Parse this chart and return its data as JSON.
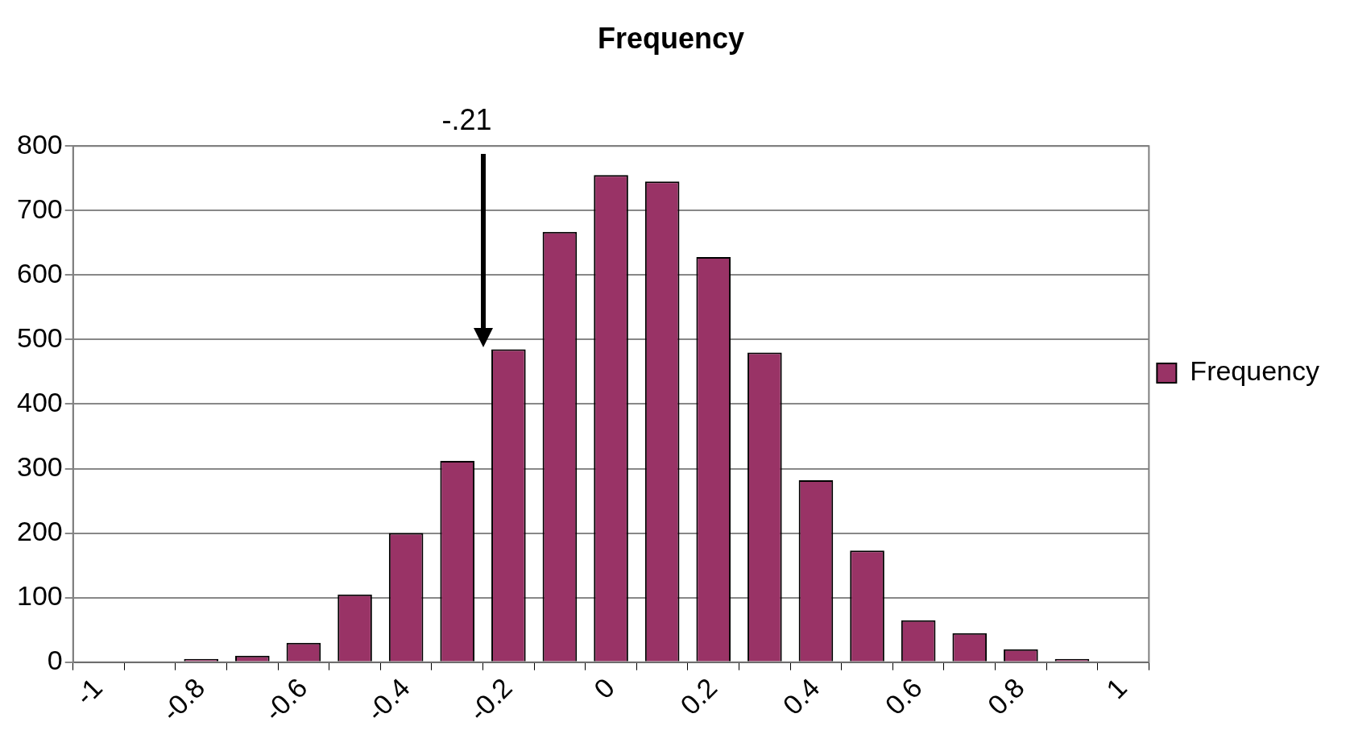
{
  "chart_data": {
    "type": "bar",
    "title": "Frequency",
    "categories": [
      "-1",
      null,
      "-0.8",
      null,
      "-0.6",
      null,
      "-0.4",
      null,
      "-0.2",
      null,
      "0",
      null,
      "0.2",
      null,
      "0.4",
      null,
      "0.6",
      null,
      "0.8",
      null,
      "1"
    ],
    "series": [
      {
        "name": "Frequency",
        "color": "#993366",
        "values": [
          0,
          0,
          5,
          10,
          30,
          105,
          200,
          312,
          485,
          667,
          755,
          745,
          628,
          480,
          282,
          173,
          65,
          45,
          20,
          5,
          0
        ]
      }
    ],
    "ylim": [
      0,
      800
    ],
    "yticks": [
      0,
      100,
      200,
      300,
      400,
      500,
      600,
      700,
      800
    ],
    "grid": "y",
    "legend": "right",
    "annotations": [
      "-.21"
    ]
  }
}
